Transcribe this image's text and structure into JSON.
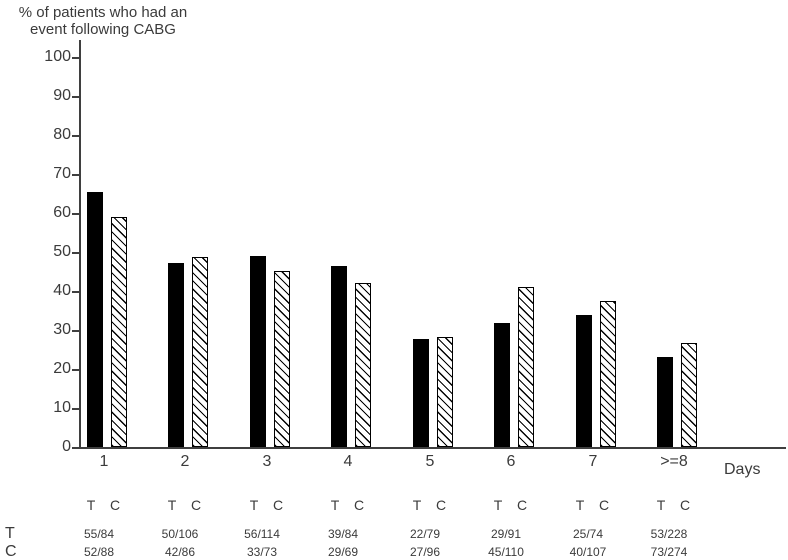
{
  "chart_data": {
    "type": "bar",
    "title": "% of patients who had an event following CABG",
    "title_lines": [
      "% of patients who had an",
      "event following CABG"
    ],
    "xlabel": "Days",
    "ylabel": "% of patients who had an event following CABG",
    "ylim": [
      0,
      100
    ],
    "ytick_step": 10,
    "yticks": [
      0,
      10,
      20,
      30,
      40,
      50,
      60,
      70,
      80,
      90,
      100
    ],
    "grid": false,
    "legend_position": "none",
    "categories": [
      "1",
      "2",
      "3",
      "4",
      "5",
      "6",
      "7",
      ">=8"
    ],
    "series": [
      {
        "name": "T",
        "style": "solid-black",
        "values": [
          65.5,
          47.2,
          49.1,
          46.4,
          27.8,
          31.9,
          33.8,
          23.2
        ],
        "fractions": [
          "55/84",
          "50/106",
          "56/114",
          "39/84",
          "22/79",
          "29/91",
          "25/74",
          "53/228"
        ]
      },
      {
        "name": "C",
        "style": "hatched",
        "values": [
          59.1,
          48.8,
          45.2,
          42.0,
          28.1,
          40.9,
          37.4,
          26.6
        ],
        "fractions": [
          "52/88",
          "42/86",
          "33/73",
          "29/69",
          "27/96",
          "45/110",
          "40/107",
          "73/274"
        ]
      }
    ],
    "column_header_labels": [
      "T",
      "C"
    ],
    "table_row_labels": [
      "T",
      "C"
    ]
  }
}
